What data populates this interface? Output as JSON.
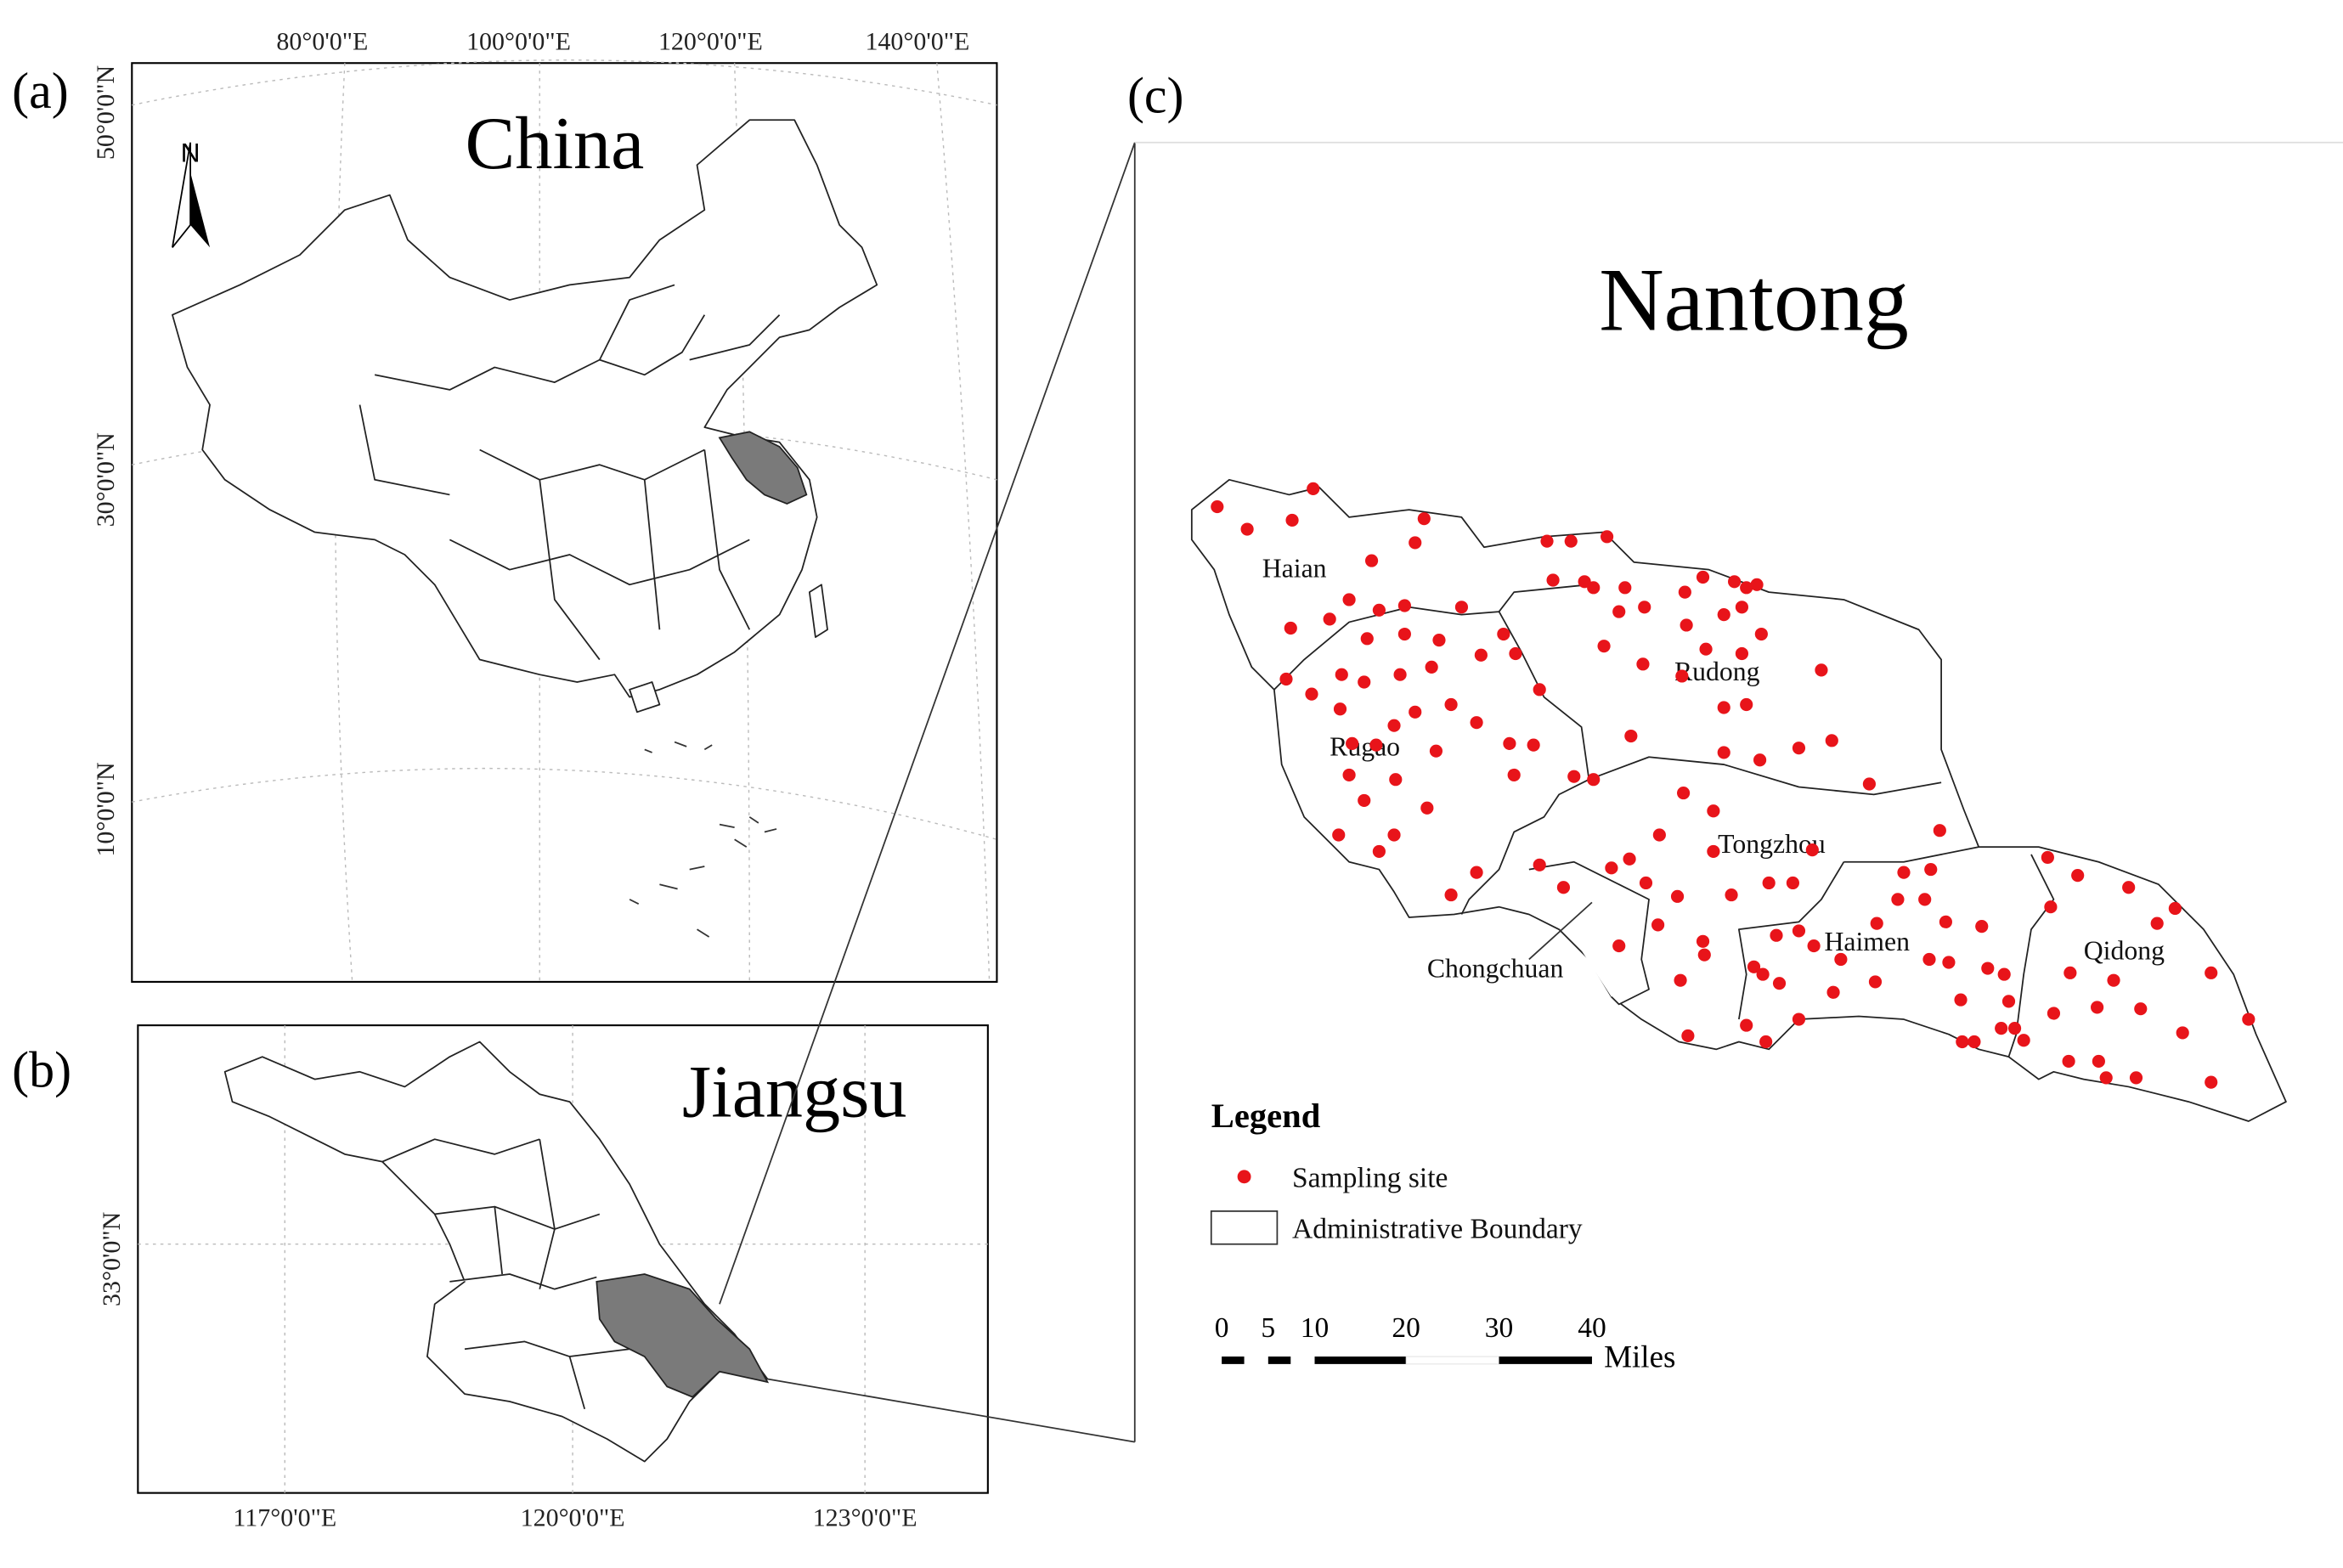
{
  "panels": {
    "a": {
      "label": "(a)",
      "title": "China",
      "north": "N",
      "top_labels": [
        "80°0'0\"E",
        "100°0'0\"E",
        "120°0'0\"E",
        "140°0'0\"E"
      ],
      "left_labels": [
        "50°0'0\"N",
        "30°0'0\"N",
        "10°0'0\"N"
      ]
    },
    "b": {
      "label": "(b)",
      "title": "Jiangsu",
      "left_labels": [
        "33°0'0\"N"
      ],
      "bottom_labels": [
        "117°0'0\"E",
        "120°0'0\"E",
        "123°0'0\"E"
      ]
    },
    "c": {
      "label": "(c)",
      "title": "Nantong",
      "districts": [
        "Haian",
        "Rudong",
        "Rugao",
        "Tongzhou",
        "Haimen",
        "Qidong",
        "Chongchuan"
      ],
      "legend": {
        "title": "Legend",
        "items": [
          "Sampling site",
          "Administrative Boundary"
        ]
      },
      "scale": {
        "ticks": [
          0,
          5,
          10,
          20,
          30,
          40
        ],
        "unit": "Miles"
      }
    }
  }
}
